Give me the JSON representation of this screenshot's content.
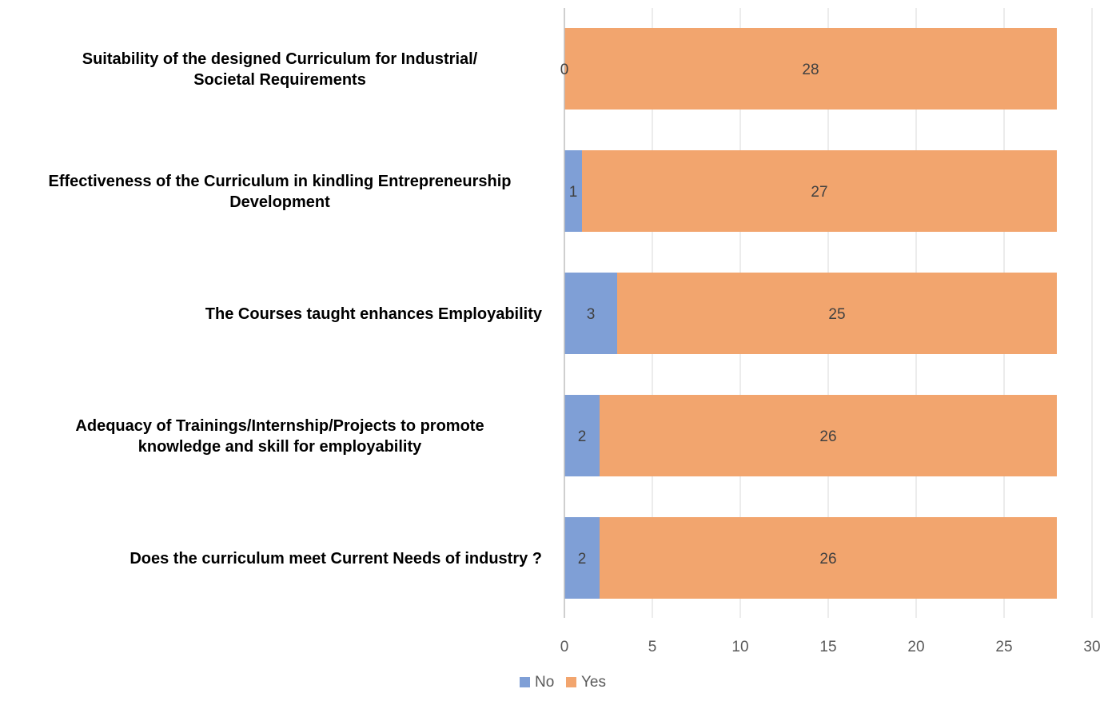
{
  "chart_data": {
    "type": "bar",
    "orientation": "horizontal",
    "stacked": true,
    "categories": [
      [
        "Suitability of the designed Curriculum for Industrial/",
        "Societal Requirements"
      ],
      [
        "Effectiveness of the Curriculum in kindling Entrepreneurship",
        "Development"
      ],
      [
        "The Courses taught enhances Employability"
      ],
      [
        "Adequacy of Trainings/Internship/Projects to promote",
        "knowledge and skill for employability"
      ],
      [
        "Does the curriculum meet Current Needs of industry ?"
      ]
    ],
    "series": [
      {
        "name": "No",
        "color": "#7f9fd6",
        "values": [
          0,
          1,
          3,
          2,
          2
        ]
      },
      {
        "name": "Yes",
        "color": "#f2a56e",
        "values": [
          28,
          27,
          25,
          26,
          26
        ]
      }
    ],
    "xlim": [
      0,
      30
    ],
    "xticks": [
      0,
      5,
      10,
      15,
      20,
      25,
      30
    ],
    "grid": true,
    "legend_position": "bottom",
    "data_labels": true
  }
}
